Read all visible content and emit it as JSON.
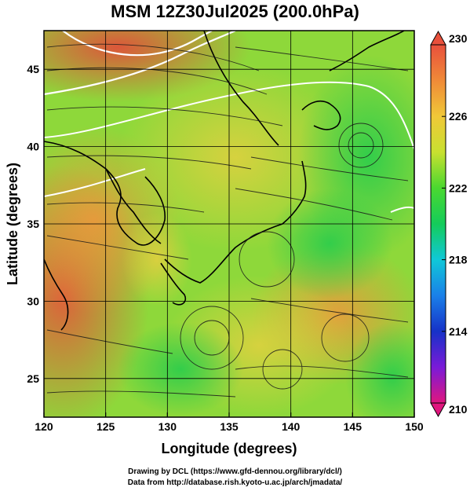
{
  "title": "MSM 12Z30Jul2025 (200.0hPa)",
  "x_axis": {
    "label": "Longitude (degrees)",
    "range": [
      120,
      150
    ],
    "ticks": [
      120,
      125,
      130,
      135,
      140,
      145,
      150
    ]
  },
  "y_axis": {
    "label": "Latitude (degrees)",
    "range": [
      22.5,
      47.5
    ],
    "ticks": [
      25,
      30,
      35,
      40,
      45
    ]
  },
  "colorbar": {
    "min": 210,
    "max": 230,
    "tick_labels": [
      "230",
      "226",
      "222",
      "218",
      "214",
      "210"
    ],
    "tick_values": [
      230,
      226,
      222,
      218,
      214,
      210
    ],
    "colors": [
      "#e0167e",
      "#7a1ad8",
      "#1632c8",
      "#1a80e8",
      "#10c8d8",
      "#14cc5a",
      "#4ad830",
      "#c8e030",
      "#f0c838",
      "#f08a38",
      "#e8503c"
    ]
  },
  "credits": {
    "line1": "Drawing by DCL (https://www.gfd-dennou.org/library/dcl/)",
    "line2": "Data from http://database.rish.kyoto-u.ac.jp/arch/jmadata/"
  }
}
